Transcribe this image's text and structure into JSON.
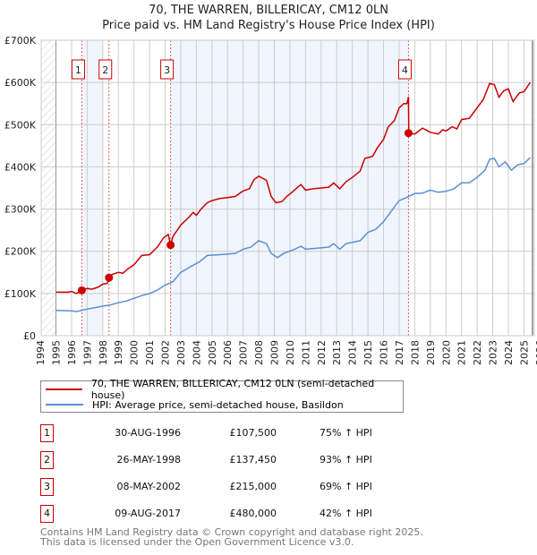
{
  "chart_data": {
    "type": "line",
    "title": "70, THE WARREN, BILLERICAY, CM12 0LN",
    "subtitle": "Price paid vs. HM Land Registry's House Price Index (HPI)",
    "xlim": [
      1994,
      2026
    ],
    "ylim": [
      0,
      700000
    ],
    "x_ticks": [
      "1994",
      "1995",
      "1996",
      "1997",
      "1998",
      "1999",
      "2000",
      "2001",
      "2002",
      "2003",
      "2004",
      "2005",
      "2006",
      "2007",
      "2008",
      "2009",
      "2010",
      "2011",
      "2012",
      "2013",
      "2014",
      "2015",
      "2016",
      "2017",
      "2018",
      "2019",
      "2020",
      "2021",
      "2022",
      "2023",
      "2024",
      "2025",
      "2026"
    ],
    "y_ticks": [
      {
        "v": 0,
        "label": "£0"
      },
      {
        "v": 100000,
        "label": "£100K"
      },
      {
        "v": 200000,
        "label": "£200K"
      },
      {
        "v": 300000,
        "label": "£300K"
      },
      {
        "v": 400000,
        "label": "£400K"
      },
      {
        "v": 500000,
        "label": "£500K"
      },
      {
        "v": 600000,
        "label": "£600K"
      },
      {
        "v": 700000,
        "label": "£700K"
      }
    ],
    "grid": true,
    "data_end": 2025.55,
    "shaded_spans": [
      [
        1996.66,
        1998.0
      ],
      [
        2002.35,
        2017.6
      ]
    ],
    "series": [
      {
        "name": "70, THE WARREN, BILLERICAY, CM12 0LN (semi-detached house)",
        "color": "#cc0000",
        "points": [
          [
            1995.0,
            103
          ],
          [
            1995.8,
            103
          ],
          [
            1996.0,
            105
          ],
          [
            1996.3,
            100
          ],
          [
            1996.66,
            107.5
          ],
          [
            1997.0,
            112
          ],
          [
            1997.3,
            110
          ],
          [
            1997.7,
            115
          ],
          [
            1998.0,
            122
          ],
          [
            1998.3,
            124
          ],
          [
            1998.4,
            137
          ],
          [
            1998.6,
            145
          ],
          [
            1999.0,
            150
          ],
          [
            1999.3,
            148
          ],
          [
            1999.6,
            158
          ],
          [
            2000.0,
            168
          ],
          [
            2000.5,
            190
          ],
          [
            2001.0,
            192
          ],
          [
            2001.5,
            210
          ],
          [
            2001.9,
            232
          ],
          [
            2002.2,
            240
          ],
          [
            2002.35,
            215
          ],
          [
            2002.5,
            235
          ],
          [
            2003.0,
            262
          ],
          [
            2003.5,
            280
          ],
          [
            2003.8,
            292
          ],
          [
            2004.0,
            285
          ],
          [
            2004.3,
            300
          ],
          [
            2004.7,
            315
          ],
          [
            2005.0,
            320
          ],
          [
            2005.5,
            325
          ],
          [
            2006.0,
            327
          ],
          [
            2006.5,
            330
          ],
          [
            2007.0,
            343
          ],
          [
            2007.4,
            348
          ],
          [
            2007.7,
            370
          ],
          [
            2008.0,
            378
          ],
          [
            2008.5,
            368
          ],
          [
            2008.8,
            330
          ],
          [
            2009.1,
            315
          ],
          [
            2009.5,
            318
          ],
          [
            2009.8,
            330
          ],
          [
            2010.2,
            342
          ],
          [
            2010.5,
            352
          ],
          [
            2010.7,
            358
          ],
          [
            2011.0,
            345
          ],
          [
            2011.5,
            348
          ],
          [
            2012.0,
            350
          ],
          [
            2012.5,
            352
          ],
          [
            2012.8,
            362
          ],
          [
            2013.2,
            348
          ],
          [
            2013.6,
            365
          ],
          [
            2014.0,
            375
          ],
          [
            2014.5,
            390
          ],
          [
            2014.8,
            420
          ],
          [
            2015.3,
            425
          ],
          [
            2015.6,
            445
          ],
          [
            2016.0,
            465
          ],
          [
            2016.3,
            495
          ],
          [
            2016.7,
            510
          ],
          [
            2017.0,
            540
          ],
          [
            2017.3,
            550
          ],
          [
            2017.5,
            550
          ],
          [
            2017.6,
            566
          ],
          [
            2017.62,
            480
          ],
          [
            2018.0,
            478
          ],
          [
            2018.5,
            492
          ],
          [
            2019.0,
            482
          ],
          [
            2019.5,
            478
          ],
          [
            2019.8,
            488
          ],
          [
            2020.0,
            485
          ],
          [
            2020.4,
            495
          ],
          [
            2020.7,
            490
          ],
          [
            2021.0,
            512
          ],
          [
            2021.5,
            515
          ],
          [
            2022.0,
            540
          ],
          [
            2022.4,
            560
          ],
          [
            2022.8,
            598
          ],
          [
            2023.1,
            595
          ],
          [
            2023.4,
            565
          ],
          [
            2023.7,
            580
          ],
          [
            2024.0,
            585
          ],
          [
            2024.3,
            555
          ],
          [
            2024.7,
            575
          ],
          [
            2025.0,
            578
          ],
          [
            2025.4,
            600
          ]
        ]
      },
      {
        "name": "HPI: Average price, semi-detached house, Basildon",
        "color": "#5b8fd6",
        "points": [
          [
            1995.0,
            60
          ],
          [
            1996.0,
            59
          ],
          [
            1996.3,
            57
          ],
          [
            1997.0,
            63
          ],
          [
            1998.0,
            70
          ],
          [
            1998.5,
            73
          ],
          [
            1999.0,
            78
          ],
          [
            1999.5,
            82
          ],
          [
            2000.5,
            95
          ],
          [
            2001.0,
            100
          ],
          [
            2001.5,
            108
          ],
          [
            2002.0,
            120
          ],
          [
            2002.5,
            128
          ],
          [
            2003.0,
            150
          ],
          [
            2003.7,
            165
          ],
          [
            2004.2,
            175
          ],
          [
            2004.7,
            190
          ],
          [
            2005.5,
            192
          ],
          [
            2006.5,
            195
          ],
          [
            2007.0,
            205
          ],
          [
            2007.5,
            210
          ],
          [
            2008.0,
            225
          ],
          [
            2008.5,
            218
          ],
          [
            2008.8,
            195
          ],
          [
            2009.2,
            185
          ],
          [
            2009.6,
            195
          ],
          [
            2010.3,
            205
          ],
          [
            2010.7,
            212
          ],
          [
            2011.0,
            205
          ],
          [
            2012.0,
            208
          ],
          [
            2012.5,
            210
          ],
          [
            2012.8,
            218
          ],
          [
            2013.2,
            205
          ],
          [
            2013.6,
            218
          ],
          [
            2014.5,
            225
          ],
          [
            2015.0,
            245
          ],
          [
            2015.5,
            252
          ],
          [
            2016.0,
            270
          ],
          [
            2016.5,
            295
          ],
          [
            2017.0,
            320
          ],
          [
            2017.5,
            328
          ],
          [
            2018.0,
            337
          ],
          [
            2018.5,
            338
          ],
          [
            2019.0,
            345
          ],
          [
            2019.5,
            340
          ],
          [
            2020.0,
            342
          ],
          [
            2020.5,
            348
          ],
          [
            2021.0,
            362
          ],
          [
            2021.5,
            362
          ],
          [
            2022.0,
            375
          ],
          [
            2022.5,
            392
          ],
          [
            2022.8,
            418
          ],
          [
            2023.1,
            420
          ],
          [
            2023.4,
            400
          ],
          [
            2023.8,
            412
          ],
          [
            2024.2,
            392
          ],
          [
            2024.6,
            405
          ],
          [
            2025.0,
            408
          ],
          [
            2025.4,
            422
          ]
        ]
      }
    ],
    "value_unit": "thousands GBP",
    "sales": [
      {
        "n": "1",
        "x": 1996.66,
        "value": 107.5,
        "date": "30-AUG-1996",
        "price": "£107,500",
        "hpi": "75% ↑ HPI"
      },
      {
        "n": "2",
        "x": 1998.4,
        "value": 137.45,
        "date": "26-MAY-1998",
        "price": "£137,450",
        "hpi": "93% ↑ HPI"
      },
      {
        "n": "3",
        "x": 2002.35,
        "value": 215,
        "date": "08-MAY-2002",
        "price": "£215,000",
        "hpi": "69% ↑ HPI"
      },
      {
        "n": "4",
        "x": 2017.6,
        "value": 480,
        "date": "09-AUG-2017",
        "price": "£480,000",
        "hpi": "42% ↑ HPI"
      }
    ]
  },
  "legend": {
    "property": "70, THE WARREN, BILLERICAY, CM12 0LN (semi-detached house)",
    "hpi": "HPI: Average price, semi-detached house, Basildon"
  },
  "footer": {
    "line1": "Contains HM Land Registry data © Crown copyright and database right 2025.",
    "line2": "This data is licensed under the Open Government Licence v3.0."
  }
}
